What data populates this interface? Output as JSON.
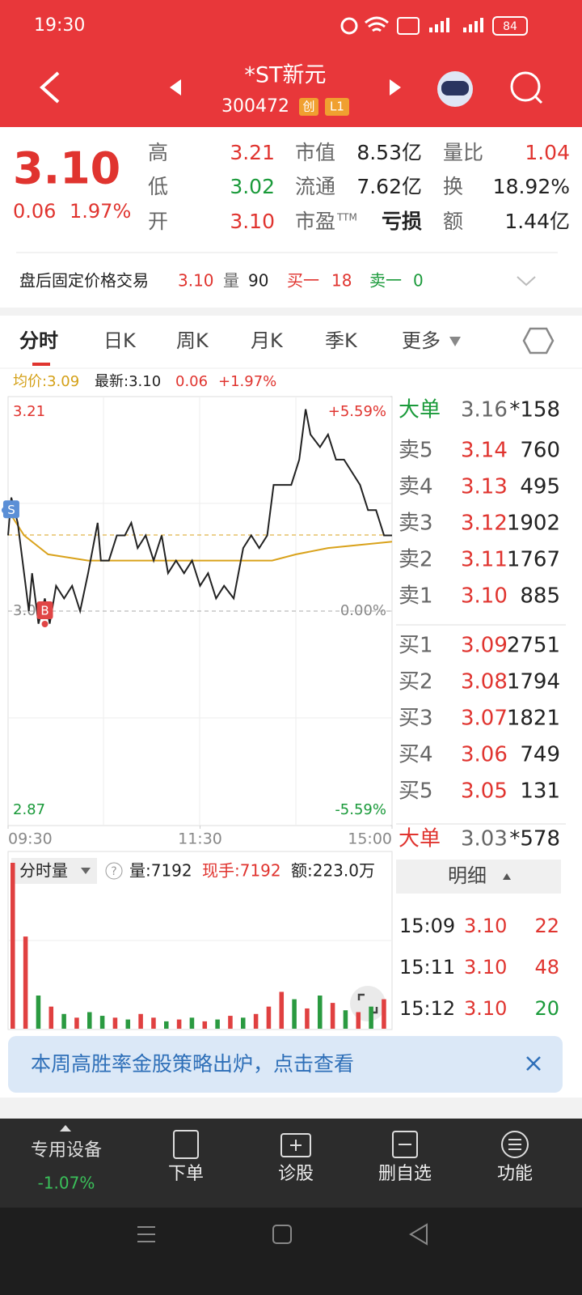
{
  "status_bar": {
    "time": "19:30",
    "battery": "84"
  },
  "header": {
    "name": "*ST新元",
    "code": "300472",
    "badges": [
      "创",
      "L1"
    ]
  },
  "quote": {
    "price": "3.10",
    "change": "0.06",
    "change_pct": "1.97%",
    "stats": [
      {
        "label": "高",
        "value": "3.21",
        "color": "#e0342f"
      },
      {
        "label": "低",
        "value": "3.02",
        "color": "#1a9a3a"
      },
      {
        "label": "开",
        "value": "3.10",
        "color": "#e0342f"
      },
      {
        "label": "市值",
        "value": "8.53亿"
      },
      {
        "label": "流通",
        "value": "7.62亿"
      },
      {
        "label": "市盈",
        "label_sup": "TTM",
        "value": "亏损"
      },
      {
        "label": "量比",
        "value": "1.04",
        "color": "#e0342f"
      },
      {
        "label": "换",
        "value": "18.92%"
      },
      {
        "label": "额",
        "value": "1.44亿"
      }
    ]
  },
  "after_hours": {
    "label": "盘后固定价格交易",
    "price": "3.10",
    "vol_label": "量",
    "vol": "90",
    "bid_label": "买一",
    "bid": "18",
    "ask_label": "卖一",
    "ask": "0"
  },
  "tabs": [
    "分时",
    "日K",
    "周K",
    "月K",
    "季K",
    "更多"
  ],
  "chart": {
    "avg_label": "均价:3.09",
    "latest_label": "最新:3.10",
    "change": "0.06",
    "change_pct": "+1.97%",
    "ylim": [
      2.87,
      3.21
    ],
    "yticks": [
      3.21,
      3.04,
      2.87
    ],
    "pct_ticks": [
      {
        "value": 3.21,
        "label": "+5.59%"
      },
      {
        "value": 3.04,
        "label": "0.00%"
      },
      {
        "value": 2.87,
        "label": "-5.59%"
      }
    ],
    "xlim": [
      0,
      240
    ],
    "xticks": [
      {
        "value": 0,
        "label": "09:30"
      },
      {
        "value": 120,
        "label": "11:30"
      },
      {
        "value": 240,
        "label": "15:00"
      }
    ],
    "price_line": {
      "color": "#222222",
      "x": [
        0,
        2,
        6,
        10,
        13,
        15,
        19,
        23,
        26,
        30,
        35,
        40,
        45,
        50,
        53,
        56,
        58,
        63,
        68,
        73,
        77,
        81,
        86,
        91,
        96,
        100,
        105,
        110,
        115,
        120,
        125,
        130,
        135,
        141,
        147,
        152,
        157,
        162,
        166,
        172,
        177,
        182,
        186,
        189,
        195,
        200,
        205,
        210,
        215,
        220,
        225,
        230,
        235,
        240
      ],
      "values": [
        3.1,
        3.13,
        3.11,
        3.07,
        3.04,
        3.07,
        3.03,
        3.05,
        3.03,
        3.06,
        3.05,
        3.06,
        3.04,
        3.07,
        3.09,
        3.11,
        3.08,
        3.08,
        3.1,
        3.1,
        3.11,
        3.09,
        3.1,
        3.08,
        3.1,
        3.07,
        3.08,
        3.07,
        3.08,
        3.06,
        3.07,
        3.05,
        3.06,
        3.05,
        3.09,
        3.1,
        3.09,
        3.1,
        3.14,
        3.14,
        3.14,
        3.16,
        3.2,
        3.18,
        3.17,
        3.18,
        3.16,
        3.16,
        3.15,
        3.14,
        3.12,
        3.12,
        3.1,
        3.1
      ]
    },
    "avg_line": {
      "color": "#d9a21b",
      "x": [
        0,
        10,
        25,
        50,
        100,
        150,
        165,
        180,
        200,
        240
      ],
      "values": [
        3.12,
        3.1,
        3.085,
        3.08,
        3.08,
        3.08,
        3.08,
        3.085,
        3.09,
        3.095
      ]
    },
    "markers": [
      {
        "label": "S",
        "x": 2,
        "value": 3.12,
        "color": "#5b8fd6"
      },
      {
        "label": "B",
        "x": 23,
        "value": 3.04,
        "color": "#e04545"
      }
    ]
  },
  "order_book": {
    "big_top": {
      "label": "大单",
      "price": "3.16",
      "vol": "*158"
    },
    "asks": [
      {
        "label": "卖5",
        "price": "3.14",
        "vol": "760"
      },
      {
        "label": "卖4",
        "price": "3.13",
        "vol": "495"
      },
      {
        "label": "卖3",
        "price": "3.12",
        "vol": "1902"
      },
      {
        "label": "卖2",
        "price": "3.11",
        "vol": "1767"
      },
      {
        "label": "卖1",
        "price": "3.10",
        "vol": "885"
      }
    ],
    "bids": [
      {
        "label": "买1",
        "price": "3.09",
        "vol": "2751"
      },
      {
        "label": "买2",
        "price": "3.08",
        "vol": "1794"
      },
      {
        "label": "买3",
        "price": "3.07",
        "vol": "1821"
      },
      {
        "label": "买4",
        "price": "3.06",
        "vol": "749"
      },
      {
        "label": "买5",
        "price": "3.05",
        "vol": "131"
      }
    ],
    "big_bottom": {
      "label": "大单",
      "price": "3.03",
      "vol": "*578"
    },
    "detail_label": "明细",
    "trades": [
      {
        "time": "15:09",
        "price": "3.10",
        "vol": "22",
        "color": "#e0342f"
      },
      {
        "time": "15:11",
        "price": "3.10",
        "vol": "48",
        "color": "#e0342f"
      },
      {
        "time": "15:12",
        "price": "3.10",
        "vol": "20",
        "color": "#1a9a3a"
      }
    ]
  },
  "volume_panel": {
    "label": "分时量",
    "vol": "量:7192",
    "current": "现手:7192",
    "amount": "额:223.0万",
    "x": [
      0,
      8,
      16,
      24,
      32,
      40,
      48,
      56,
      64,
      72,
      80,
      88,
      96,
      104,
      112,
      120,
      128,
      136,
      144,
      152,
      160,
      168,
      176,
      184,
      192,
      200,
      208,
      216,
      224,
      232
    ],
    "volumes": [
      900,
      500,
      180,
      120,
      80,
      60,
      90,
      70,
      60,
      50,
      80,
      60,
      40,
      50,
      60,
      40,
      50,
      70,
      60,
      80,
      120,
      200,
      160,
      110,
      180,
      140,
      100,
      90,
      120,
      160
    ],
    "colors": [
      "#e04040",
      "#e04040",
      "#2a9a40",
      "#e04040",
      "#2a9a40",
      "#e04040",
      "#2a9a40",
      "#2a9a40",
      "#e04040",
      "#2a9a40",
      "#e04040",
      "#e04040",
      "#2a9a40",
      "#e04040",
      "#2a9a40",
      "#e04040",
      "#2a9a40",
      "#e04040",
      "#2a9a40",
      "#e04040",
      "#e04040",
      "#e04040",
      "#2a9a40",
      "#e04040",
      "#2a9a40",
      "#e04040",
      "#2a9a40",
      "#e04040",
      "#2a9a40",
      "#e04040"
    ]
  },
  "banner": "本周高胜率金股策略出炉，点击查看",
  "bottom_nav": {
    "sector": "专用设备",
    "sector_change": "-1.07%",
    "items": [
      "下单",
      "诊股",
      "删自选",
      "功能"
    ]
  }
}
